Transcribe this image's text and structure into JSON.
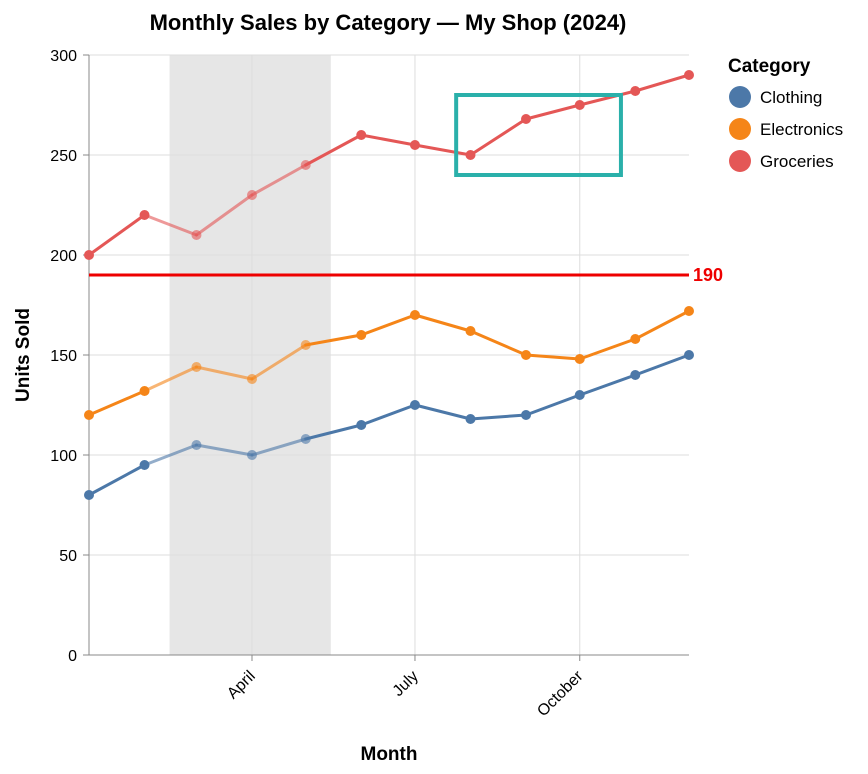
{
  "chart_data": {
    "type": "line",
    "title": "Monthly Sales by Category — My Shop (2024)",
    "xlabel": "Month",
    "ylabel": "Units Sold",
    "ylim": [
      0,
      300
    ],
    "yticks": [
      0,
      50,
      100,
      150,
      200,
      250,
      300
    ],
    "x": [
      "2024-01",
      "2024-02",
      "2024-03",
      "2024-04",
      "2024-05",
      "2024-06",
      "2024-07",
      "2024-08",
      "2024-09",
      "2024-10",
      "2024-11",
      "2024-12"
    ],
    "xtick_labels": [
      {
        "x": "2024-04",
        "label": "April"
      },
      {
        "x": "2024-07",
        "label": "July"
      },
      {
        "x": "2024-10",
        "label": "October"
      }
    ],
    "grid": true,
    "legend": {
      "title": "Category",
      "placement": "right"
    },
    "series": [
      {
        "name": "Clothing",
        "color": "#4c78a8",
        "values": [
          80,
          95,
          105,
          100,
          108,
          115,
          125,
          118,
          120,
          130,
          140,
          150
        ]
      },
      {
        "name": "Electronics",
        "color": "#f58518",
        "values": [
          120,
          132,
          144,
          138,
          155,
          160,
          170,
          162,
          150,
          148,
          158,
          172
        ]
      },
      {
        "name": "Groceries",
        "color": "#e45756",
        "values": [
          200,
          220,
          210,
          230,
          245,
          260,
          255,
          250,
          268,
          275,
          282,
          290
        ]
      }
    ],
    "highlight_band": {
      "x_start": "2024-02-15",
      "x_end": "2024-05-15",
      "color": "#e6e6e6"
    },
    "reference_line": {
      "y": 190,
      "label": "190",
      "color": "#ee0000"
    },
    "annotation_box": {
      "x_start": "2024-07-24",
      "x_end": "2024-10-24",
      "y_start": 240,
      "y_end": 280,
      "color": "#2ab0aa"
    }
  }
}
